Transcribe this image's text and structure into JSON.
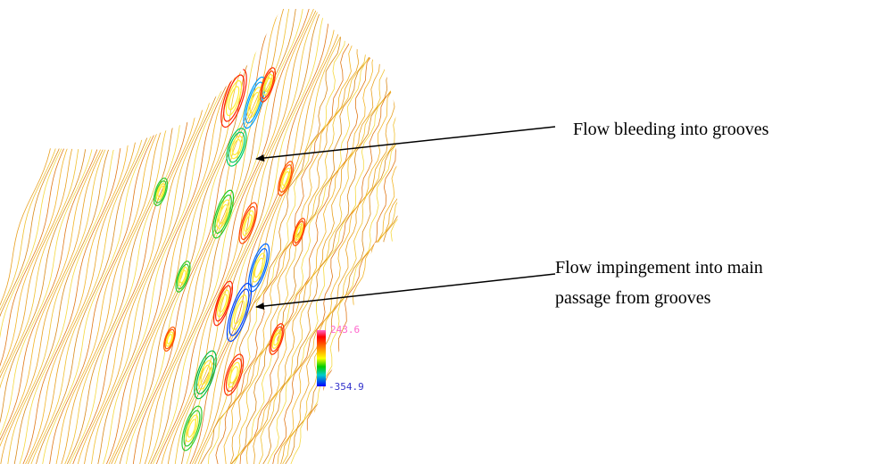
{
  "figure": {
    "colorbar": {
      "max": 243.6,
      "min": -354.9
    },
    "annotations": [
      {
        "lines": [
          "Flow bleeding into grooves"
        ]
      },
      {
        "lines": [
          "Flow impingement into main",
          "passage from grooves"
        ]
      }
    ]
  }
}
